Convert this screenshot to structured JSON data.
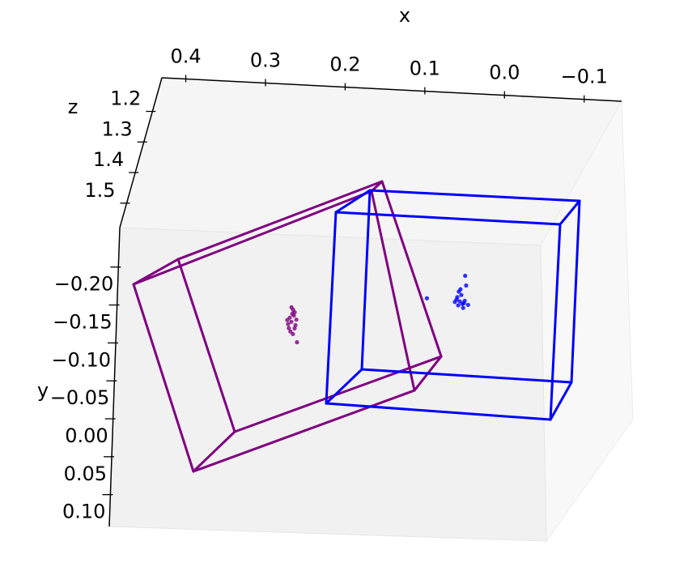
{
  "chart_data": {
    "type": "scatter3d",
    "xlabel": "x",
    "ylabel": "y",
    "zlabel": "z",
    "xlim": [
      -0.147,
      0.43
    ],
    "ylim": [
      -0.252,
      0.142
    ],
    "zlim": [
      1.09,
      1.58
    ],
    "xticks": [
      0.4,
      0.3,
      0.2,
      0.1,
      {
        "value": 0,
        "label": "0.0"
      },
      {
        "value": -0.1,
        "label": "−0.1"
      }
    ],
    "yticks": [
      {
        "value": -0.2,
        "label": "−0.20"
      },
      {
        "value": -0.15,
        "label": "−0.15"
      },
      {
        "value": -0.1,
        "label": "−0.10"
      },
      {
        "value": -0.05,
        "label": "−0.05"
      },
      {
        "value": 0,
        "label": "0.00"
      },
      {
        "value": 0.05,
        "label": "0.05"
      },
      {
        "value": 0.1,
        "label": "0.10"
      }
    ],
    "zticks": [
      1.2,
      1.3,
      1.4,
      1.5
    ],
    "boxes": [
      {
        "color": "#800080",
        "corners": [
          [
            0.4352,
            -0.0846,
            1.335
          ],
          [
            0.1278,
            -0.2167,
            1.335
          ],
          [
            0.0737,
            0.0356,
            1.335
          ],
          [
            0.3537,
            0.1499,
            1.335
          ],
          [
            0.3784,
            -0.1189,
            1.335
          ],
          [
            0.114,
            -0.2297,
            1.335
          ],
          [
            0.0391,
            -0.0093,
            1.335
          ],
          [
            0.3022,
            0.0974,
            1.335
          ]
        ]
      },
      {
        "color": "#0000ff",
        "corners": [
          [
            0.1743,
            -0.1877,
            1.335
          ],
          [
            -0.1177,
            -0.1852,
            1.335
          ],
          [
            -0.0992,
            0.066,
            1.335
          ],
          [
            0.1862,
            0.0567,
            1.335
          ],
          [
            0.1299,
            -0.2176,
            1.335
          ],
          [
            -0.1439,
            -0.2165,
            1.335
          ],
          [
            -0.1272,
            0.017,
            1.335
          ],
          [
            0.1408,
            0.0114,
            1.335
          ]
        ]
      }
    ],
    "series": [
      {
        "color": "#800080",
        "x": [
          0.2313,
          0.2334,
          0.2281,
          0.2355,
          0.226,
          0.2292,
          0.2324,
          0.2239,
          0.2271,
          0.2366,
          0.2302,
          0.2249,
          0.2345,
          0.2292,
          0.2313,
          0.2271
        ],
        "y": [
          -0.0455,
          -0.0507,
          -0.0537,
          -0.0424,
          -0.0414,
          -0.061,
          -0.0331,
          -0.0198,
          -0.0373,
          -0.0476,
          -0.0558,
          -0.0486,
          -0.0373,
          -0.03,
          -0.064,
          -0.0579
        ],
        "z": [
          1.335,
          1.335,
          1.335,
          1.335,
          1.335,
          1.335,
          1.335,
          1.335,
          1.335,
          1.335,
          1.335,
          1.335,
          1.335,
          1.335,
          1.335,
          1.335
        ]
      },
      {
        "color": "#0000ff",
        "x": [
          0.0143,
          0.0185,
          0.0111,
          0.0164,
          0.0079,
          0.0122,
          0.0207,
          0.0101,
          0.0037,
          0.0154,
          0.0058,
          0.0069,
          0.0567,
          0.0132,
          0.0175,
          0.009
        ],
        "y": [
          -0.0808,
          -0.0829,
          -0.0777,
          -0.0756,
          -0.0818,
          -0.089,
          -0.0798,
          -0.0726,
          -0.0767,
          -0.0932,
          -0.1014,
          -0.1138,
          -0.0829,
          -0.0963,
          -0.086,
          -0.0787
        ],
        "z": [
          1.335,
          1.335,
          1.335,
          1.335,
          1.335,
          1.335,
          1.335,
          1.335,
          1.335,
          1.335,
          1.335,
          1.335,
          1.335,
          1.335,
          1.335,
          1.335
        ]
      }
    ]
  }
}
